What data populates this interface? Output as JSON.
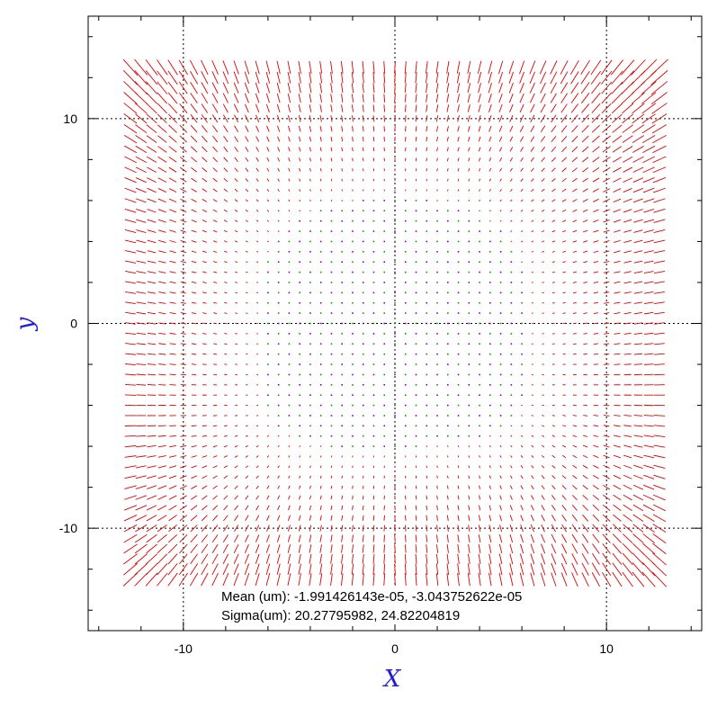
{
  "chart_data": {
    "type": "quiver",
    "title": "",
    "xlabel": "X",
    "ylabel": "y",
    "xlim": [
      -14.5,
      14.5
    ],
    "ylim": [
      -15,
      15
    ],
    "x_ticks": [
      -10,
      0,
      10
    ],
    "y_ticks": [
      -10,
      0,
      10
    ],
    "x_tick_labels": [
      "-10",
      "0",
      "10"
    ],
    "y_tick_labels": [
      "-10",
      "0",
      "10"
    ],
    "grid": "dotted at major ticks",
    "vector_grid": {
      "x_range": [
        -12.5,
        12.5
      ],
      "y_range": [
        -12.5,
        12.5
      ],
      "step": 0.5
    },
    "vector_color": "#dd0000",
    "point_colors": [
      "#7a00c8",
      "#00a000"
    ],
    "annotations": [
      "Mean (um): -1.991426143e-05, -3.043752622e-05",
      "Sigma(um): 20.27795982, 24.82204819"
    ]
  }
}
